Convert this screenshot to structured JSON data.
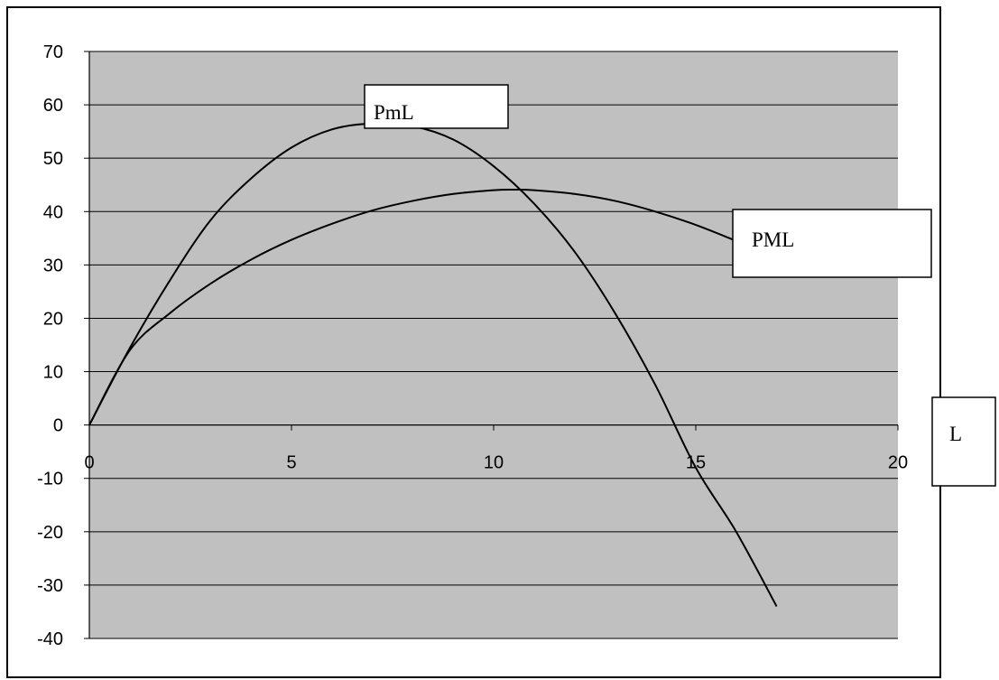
{
  "chart_data": {
    "type": "line",
    "title": "",
    "xlabel": "L",
    "ylabel": "",
    "xlim": [
      0,
      20
    ],
    "ylim": [
      -40,
      70
    ],
    "x_ticks": [
      0,
      5,
      10,
      15,
      20
    ],
    "y_ticks": [
      70,
      60,
      50,
      40,
      30,
      20,
      10,
      0,
      -10,
      -20,
      -30,
      -40
    ],
    "grid": true,
    "plot_background": "#c0c0c0",
    "line_color": "#000000",
    "series": [
      {
        "name": "PmL",
        "x": [
          0,
          1,
          2,
          3,
          4,
          5,
          6,
          7,
          8,
          9,
          10,
          11,
          12,
          13,
          14,
          15,
          16,
          17
        ],
        "y": [
          0,
          14.4,
          27.2,
          38.4,
          46.2,
          52.0,
          55.4,
          56.5,
          56.0,
          53.5,
          48.5,
          41.5,
          32.5,
          21.0,
          7.5,
          -8.0,
          -20.0,
          -34.0
        ]
      },
      {
        "name": "PML",
        "x": [
          0,
          1,
          2,
          3,
          4,
          5,
          6,
          7,
          8,
          9,
          10,
          10.5,
          11,
          12,
          13,
          14,
          15,
          16
        ],
        "y": [
          0,
          14.0,
          21.0,
          26.5,
          31.0,
          34.7,
          37.7,
          40.2,
          42.0,
          43.3,
          44.0,
          44.1,
          44.0,
          43.3,
          42.0,
          40.0,
          37.5,
          34.5
        ]
      }
    ],
    "annotations": [
      "PmL",
      "PML"
    ]
  }
}
